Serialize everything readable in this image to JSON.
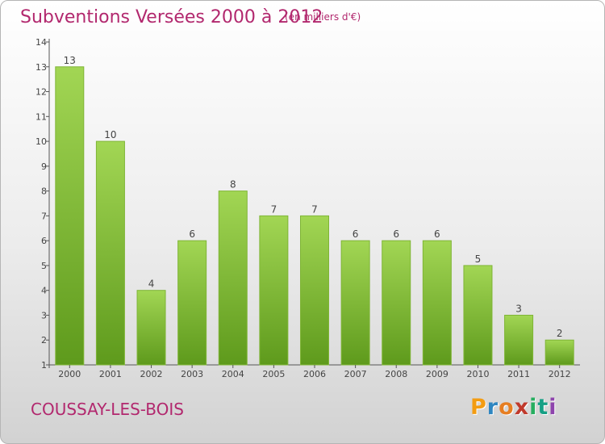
{
  "header": {
    "title": "Subventions Versées 2000 à 2012",
    "subtitle": "(en milliers d'€)"
  },
  "footer": {
    "location": "COUSSAY-LES-BOIS",
    "brand": {
      "letters": [
        "P",
        "r",
        "o",
        "x",
        "i",
        "t",
        "i"
      ],
      "colors": [
        "#f39c12",
        "#2e86c1",
        "#e67e22",
        "#c0392b",
        "#27ae60",
        "#16a085",
        "#8e44ad"
      ]
    }
  },
  "chart_data": {
    "type": "bar",
    "categories": [
      "2000",
      "2001",
      "2002",
      "2003",
      "2004",
      "2005",
      "2006",
      "2007",
      "2008",
      "2009",
      "2010",
      "2011",
      "2012"
    ],
    "values": [
      13,
      10,
      4,
      6,
      8,
      7,
      7,
      6,
      6,
      6,
      5,
      3,
      2
    ],
    "title": "Subventions Versées 2000 à 2012",
    "subtitle": "(en milliers d'€)",
    "ylim": [
      1,
      14
    ],
    "yticks": [
      1,
      2,
      3,
      4,
      5,
      6,
      7,
      8,
      9,
      10,
      11,
      12,
      13,
      14
    ],
    "grid": false,
    "bar_color": "#8cc63f",
    "bar_color_dark": "#5e9a1c"
  }
}
